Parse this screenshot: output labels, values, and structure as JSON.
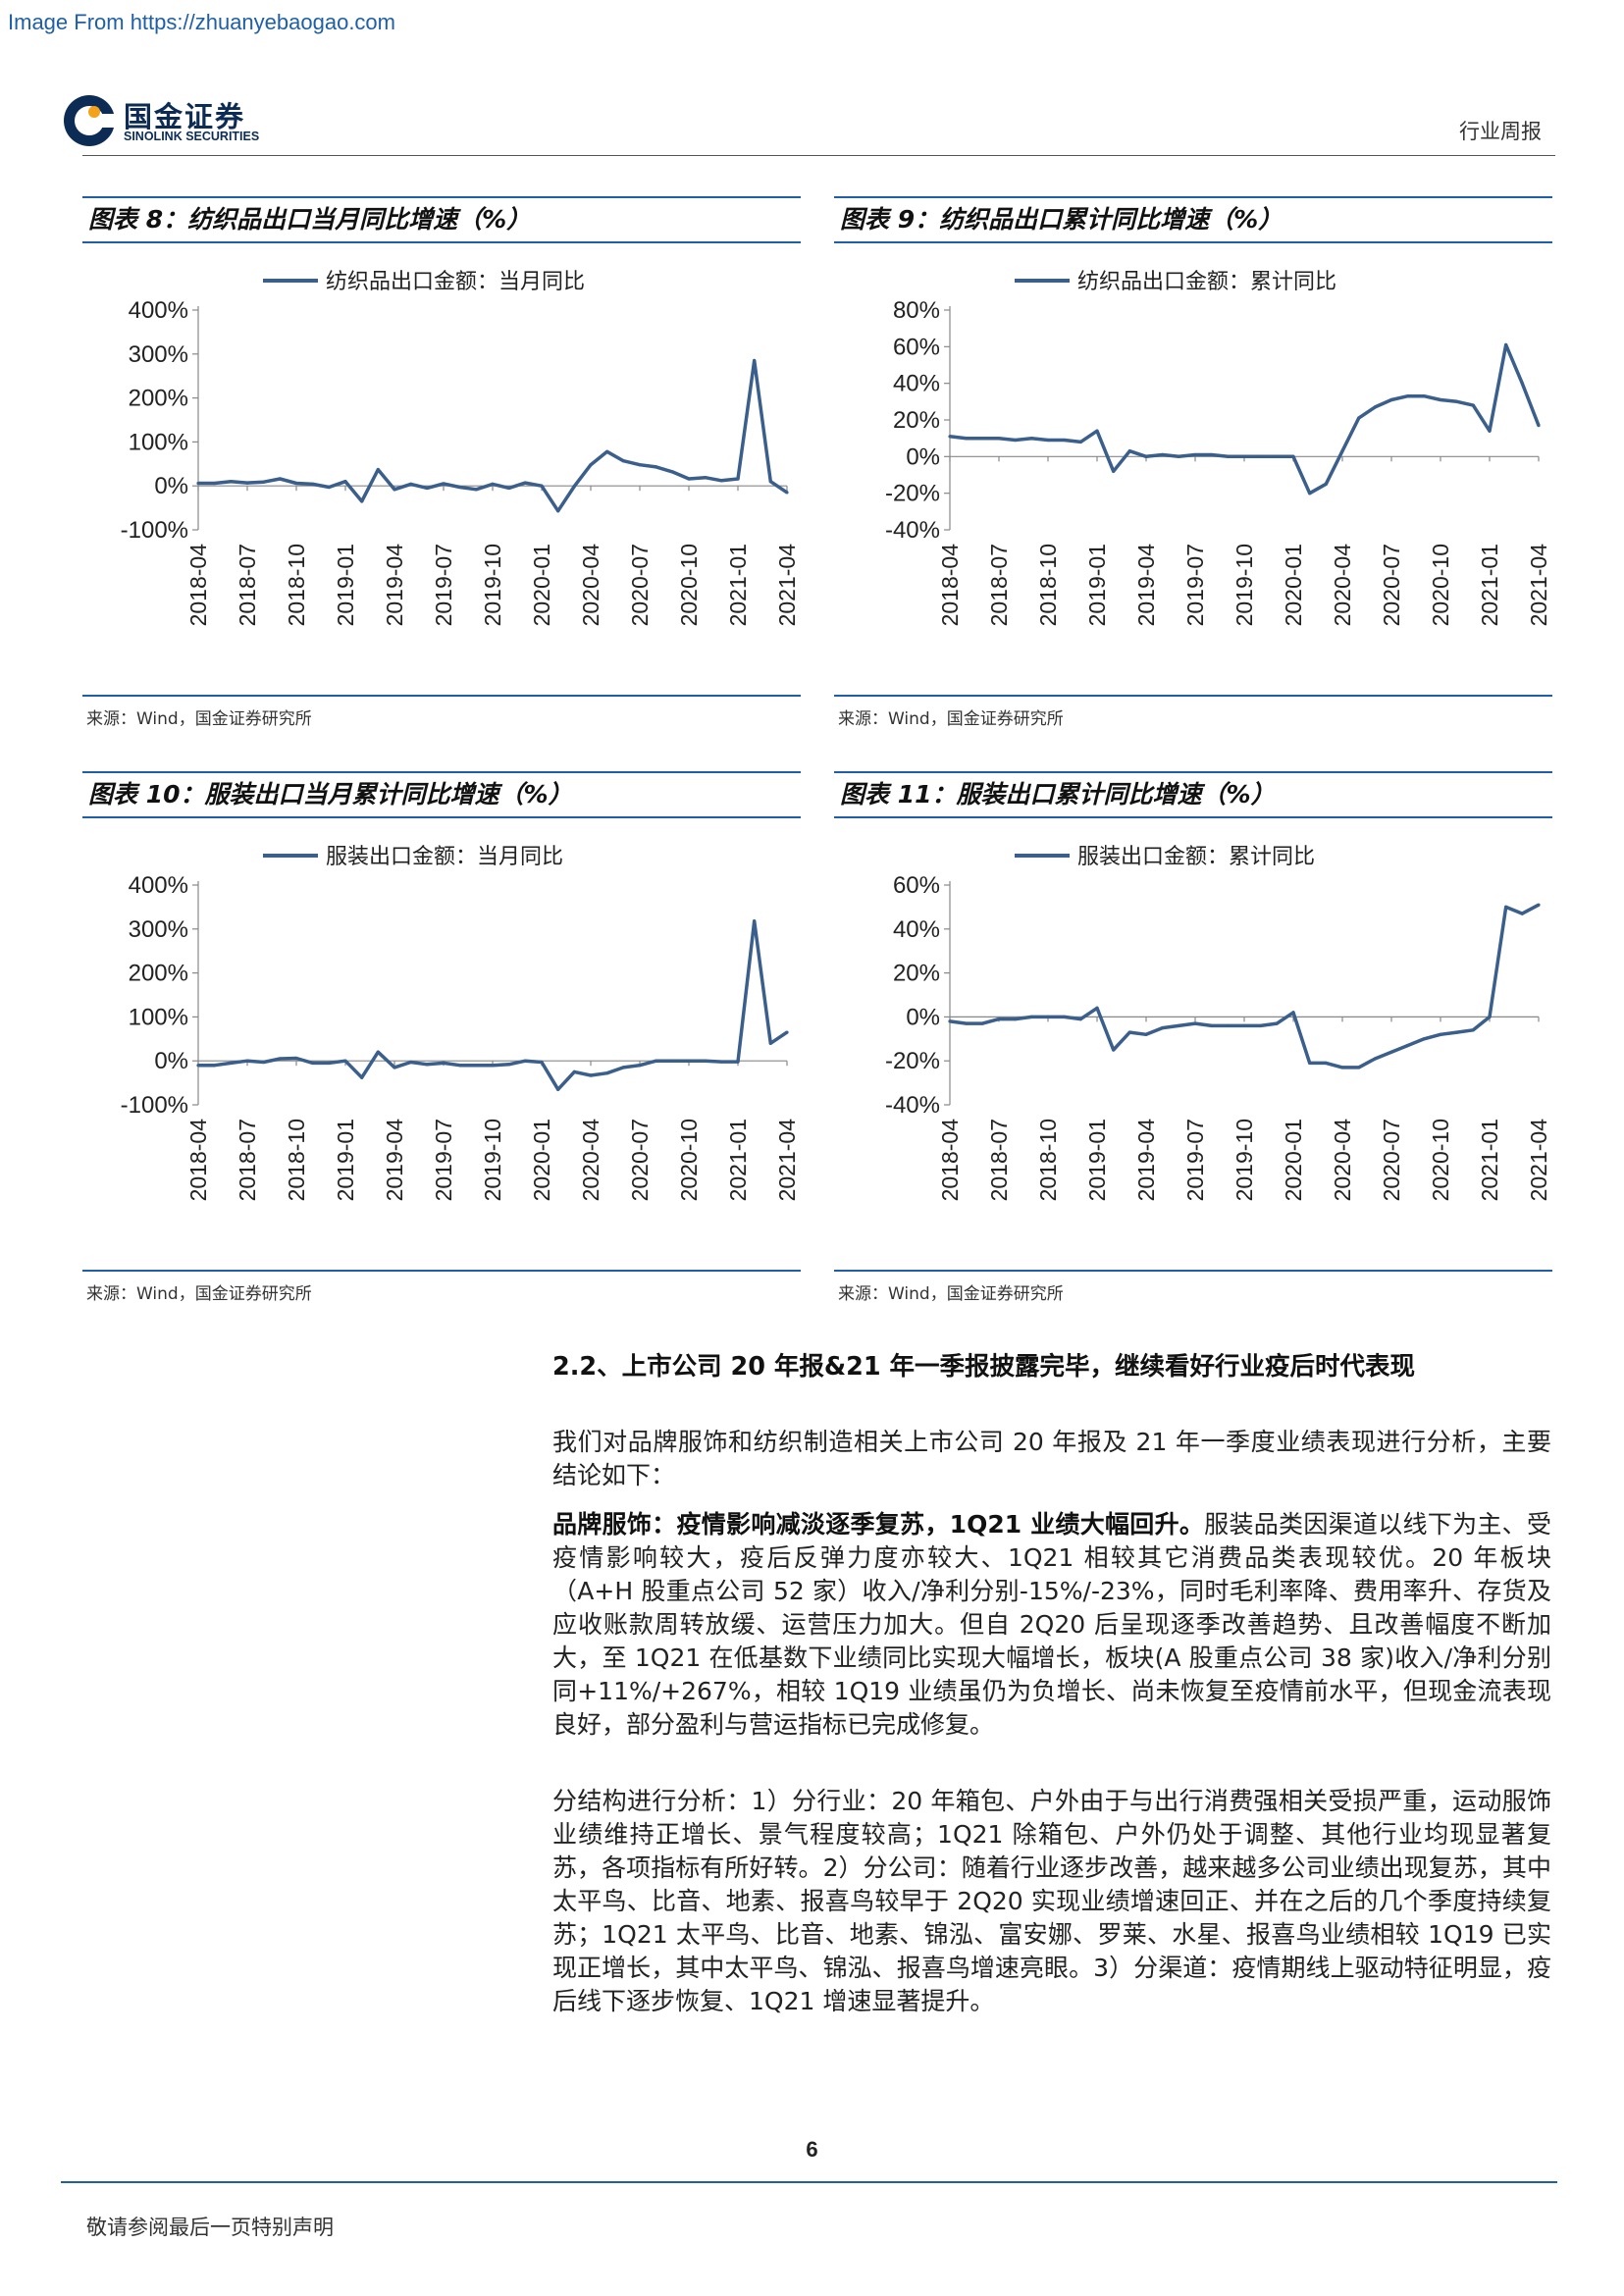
{
  "watermark": "Image From https://zhuanyebaogao.com",
  "header": {
    "logo_cn": "国金证券",
    "logo_en": "SINOLINK SECURITIES",
    "report_type": "行业周报"
  },
  "charts": [
    {
      "title": "图表 8：纺织品出口当月同比增速（%）",
      "legend": "纺织品出口金额：当月同比",
      "source": "来源：Wind，国金证券研究所"
    },
    {
      "title": "图表 9：纺织品出口累计同比增速（%）",
      "legend": "纺织品出口金额：累计同比",
      "source": "来源：Wind，国金证券研究所"
    },
    {
      "title": "图表 10：服装出口当月累计同比增速（%）",
      "legend": "服装出口金额：当月同比",
      "source": "来源：Wind，国金证券研究所"
    },
    {
      "title": "图表 11：服装出口累计同比增速（%）",
      "legend": "服装出口金额：累计同比",
      "source": "来源：Wind，国金证券研究所"
    }
  ],
  "chart_data": [
    {
      "type": "line",
      "title": "图表 8：纺织品出口当月同比增速（%）",
      "series": [
        {
          "name": "纺织品出口金额：当月同比",
          "values": [
            6,
            6,
            10,
            7,
            9,
            16,
            6,
            4,
            -3,
            10,
            -35,
            37,
            -8,
            4,
            -5,
            5,
            -3,
            -8,
            4,
            -5,
            7,
            0,
            -57,
            -1,
            48,
            78,
            57,
            48,
            43,
            32,
            16,
            19,
            12,
            16,
            285,
            10,
            -15
          ]
        }
      ],
      "x": [
        "2018-04",
        "2018-05",
        "2018-06",
        "2018-07",
        "2018-08",
        "2018-09",
        "2018-10",
        "2018-11",
        "2018-12",
        "2019-01",
        "2019-02",
        "2019-03",
        "2019-04",
        "2019-05",
        "2019-06",
        "2019-07",
        "2019-08",
        "2019-09",
        "2019-10",
        "2019-11",
        "2019-12",
        "2020-01",
        "2020-02",
        "2020-03",
        "2020-04",
        "2020-05",
        "2020-06",
        "2020-07",
        "2020-08",
        "2020-09",
        "2020-10",
        "2020-11",
        "2020-12",
        "2021-01",
        "2021-02",
        "2021-03",
        "2021-04"
      ],
      "xtick_labels": [
        "2018-04",
        "2018-07",
        "2018-10",
        "2019-01",
        "2019-04",
        "2019-07",
        "2019-10",
        "2020-01",
        "2020-04",
        "2020-07",
        "2020-10",
        "2021-01",
        "2021-04"
      ],
      "yticks": [
        -100,
        0,
        100,
        200,
        300,
        400
      ],
      "ytick_labels": [
        "-100%",
        "0%",
        "100%",
        "200%",
        "300%",
        "400%"
      ],
      "ylim": [
        -100,
        400
      ],
      "color": "#3a5f8c"
    },
    {
      "type": "line",
      "title": "图表 9：纺织品出口累计同比增速（%）",
      "series": [
        {
          "name": "纺织品出口金额：累计同比",
          "values": [
            11,
            10,
            10,
            10,
            9,
            10,
            9,
            9,
            8,
            14,
            -8,
            3,
            0,
            1,
            0,
            1,
            1,
            0,
            0,
            0,
            0,
            0,
            -20,
            -15,
            3,
            21,
            27,
            31,
            33,
            33,
            31,
            30,
            28,
            14,
            61,
            40,
            17
          ]
        }
      ],
      "x": [
        "2018-04",
        "2018-05",
        "2018-06",
        "2018-07",
        "2018-08",
        "2018-09",
        "2018-10",
        "2018-11",
        "2018-12",
        "2019-01",
        "2019-02",
        "2019-03",
        "2019-04",
        "2019-05",
        "2019-06",
        "2019-07",
        "2019-08",
        "2019-09",
        "2019-10",
        "2019-11",
        "2019-12",
        "2020-01",
        "2020-02",
        "2020-03",
        "2020-04",
        "2020-05",
        "2020-06",
        "2020-07",
        "2020-08",
        "2020-09",
        "2020-10",
        "2020-11",
        "2020-12",
        "2021-01",
        "2021-02",
        "2021-03",
        "2021-04"
      ],
      "xtick_labels": [
        "2018-04",
        "2018-07",
        "2018-10",
        "2019-01",
        "2019-04",
        "2019-07",
        "2019-10",
        "2020-01",
        "2020-04",
        "2020-07",
        "2020-10",
        "2021-01",
        "2021-04"
      ],
      "yticks": [
        -40,
        -20,
        0,
        20,
        40,
        60,
        80
      ],
      "ytick_labels": [
        "-40%",
        "-20%",
        "0%",
        "20%",
        "40%",
        "60%",
        "80%"
      ],
      "ylim": [
        -40,
        80
      ],
      "color": "#3a5f8c"
    },
    {
      "type": "line",
      "title": "图表 10：服装出口当月累计同比增速（%）",
      "series": [
        {
          "name": "服装出口金额：当月同比",
          "values": [
            -10,
            -10,
            -5,
            0,
            -3,
            5,
            6,
            -5,
            -5,
            0,
            -38,
            20,
            -15,
            -3,
            -8,
            -5,
            -10,
            -10,
            -10,
            -8,
            0,
            -3,
            -65,
            -25,
            -33,
            -28,
            -15,
            -10,
            0,
            0,
            0,
            0,
            -2,
            -2,
            318,
            40,
            65
          ]
        }
      ],
      "x": [
        "2018-04",
        "2018-05",
        "2018-06",
        "2018-07",
        "2018-08",
        "2018-09",
        "2018-10",
        "2018-11",
        "2018-12",
        "2019-01",
        "2019-02",
        "2019-03",
        "2019-04",
        "2019-05",
        "2019-06",
        "2019-07",
        "2019-08",
        "2019-09",
        "2019-10",
        "2019-11",
        "2019-12",
        "2020-01",
        "2020-02",
        "2020-03",
        "2020-04",
        "2020-05",
        "2020-06",
        "2020-07",
        "2020-08",
        "2020-09",
        "2020-10",
        "2020-11",
        "2020-12",
        "2021-01",
        "2021-02",
        "2021-03",
        "2021-04"
      ],
      "xtick_labels": [
        "2018-04",
        "2018-07",
        "2018-10",
        "2019-01",
        "2019-04",
        "2019-07",
        "2019-10",
        "2020-01",
        "2020-04",
        "2020-07",
        "2020-10",
        "2021-01",
        "2021-04"
      ],
      "yticks": [
        -100,
        0,
        100,
        200,
        300,
        400
      ],
      "ytick_labels": [
        "-100%",
        "0%",
        "100%",
        "200%",
        "300%",
        "400%"
      ],
      "ylim": [
        -100,
        400
      ],
      "color": "#3a5f8c"
    },
    {
      "type": "line",
      "title": "图表 11：服装出口累计同比增速（%）",
      "series": [
        {
          "name": "服装出口金额：累计同比",
          "values": [
            -2,
            -3,
            -3,
            -1,
            -1,
            0,
            0,
            0,
            -1,
            4,
            -15,
            -7,
            -8,
            -5,
            -4,
            -3,
            -4,
            -4,
            -4,
            -4,
            -3,
            2,
            -21,
            -21,
            -23,
            -23,
            -19,
            -16,
            -13,
            -10,
            -8,
            -7,
            -6,
            0,
            50,
            47,
            51
          ]
        }
      ],
      "x": [
        "2018-04",
        "2018-05",
        "2018-06",
        "2018-07",
        "2018-08",
        "2018-09",
        "2018-10",
        "2018-11",
        "2018-12",
        "2019-01",
        "2019-02",
        "2019-03",
        "2019-04",
        "2019-05",
        "2019-06",
        "2019-07",
        "2019-08",
        "2019-09",
        "2019-10",
        "2019-11",
        "2019-12",
        "2020-01",
        "2020-02",
        "2020-03",
        "2020-04",
        "2020-05",
        "2020-06",
        "2020-07",
        "2020-08",
        "2020-09",
        "2020-10",
        "2020-11",
        "2020-12",
        "2021-01",
        "2021-02",
        "2021-03",
        "2021-04"
      ],
      "xtick_labels": [
        "2018-04",
        "2018-07",
        "2018-10",
        "2019-01",
        "2019-04",
        "2019-07",
        "2019-10",
        "2020-01",
        "2020-04",
        "2020-07",
        "2020-10",
        "2021-01",
        "2021-04"
      ],
      "yticks": [
        -40,
        -20,
        0,
        20,
        40,
        60
      ],
      "ytick_labels": [
        "-40%",
        "-20%",
        "0%",
        "20%",
        "40%",
        "60%"
      ],
      "ylim": [
        -40,
        60
      ],
      "color": "#3a5f8c"
    }
  ],
  "section": {
    "title": "2.2、上市公司 20 年报&21 年一季报披露完毕，继续看好行业疫后时代表现",
    "intro": "我们对品牌服饰和纺织制造相关上市公司 20 年报及 21 年一季度业绩表现进行分析，主要结论如下：",
    "brand_lead": "品牌服饰：疫情影响减淡逐季复苏，1Q21 业绩大幅回升。",
    "brand_body": "服装品类因渠道以线下为主、受疫情影响较大，疫后反弹力度亦较大、1Q21 相较其它消费品类表现较优。20 年板块（A+H 股重点公司 52 家）收入/净利分别-15%/-23%，同时毛利率降、费用率升、存货及应收账款周转放缓、运营压力加大。但自 2Q20 后呈现逐季改善趋势、且改善幅度不断加大，至 1Q21 在低基数下业绩同比实现大幅增长，板块(A 股重点公司 38 家)收入/净利分别同+11%/+267%，相较 1Q19 业绩虽仍为负增长、尚未恢复至疫情前水平，但现金流表现良好，部分盈利与营运指标已完成修复。",
    "structure": "分结构进行分析：1）分行业：20 年箱包、户外由于与出行消费强相关受损严重，运动服饰业绩维持正增长、景气程度较高；1Q21 除箱包、户外仍处于调整、其他行业均现显著复苏，各项指标有所好转。2）分公司：随着行业逐步改善，越来越多公司业绩出现复苏，其中太平鸟、比音、地素、报喜鸟较早于 2Q20 实现业绩增速回正、并在之后的几个季度持续复苏；1Q21 太平鸟、比音、地素、锦泓、富安娜、罗莱、水星、报喜鸟业绩相较 1Q19 已实现正增长，其中太平鸟、锦泓、报喜鸟增速亮眼。3）分渠道：疫情期线上驱动特征明显，疫后线下逐步恢复、1Q21 增速显著提升。"
  },
  "footer": {
    "page_number": "6",
    "disclaimer": "敬请参阅最后一页特别声明"
  }
}
